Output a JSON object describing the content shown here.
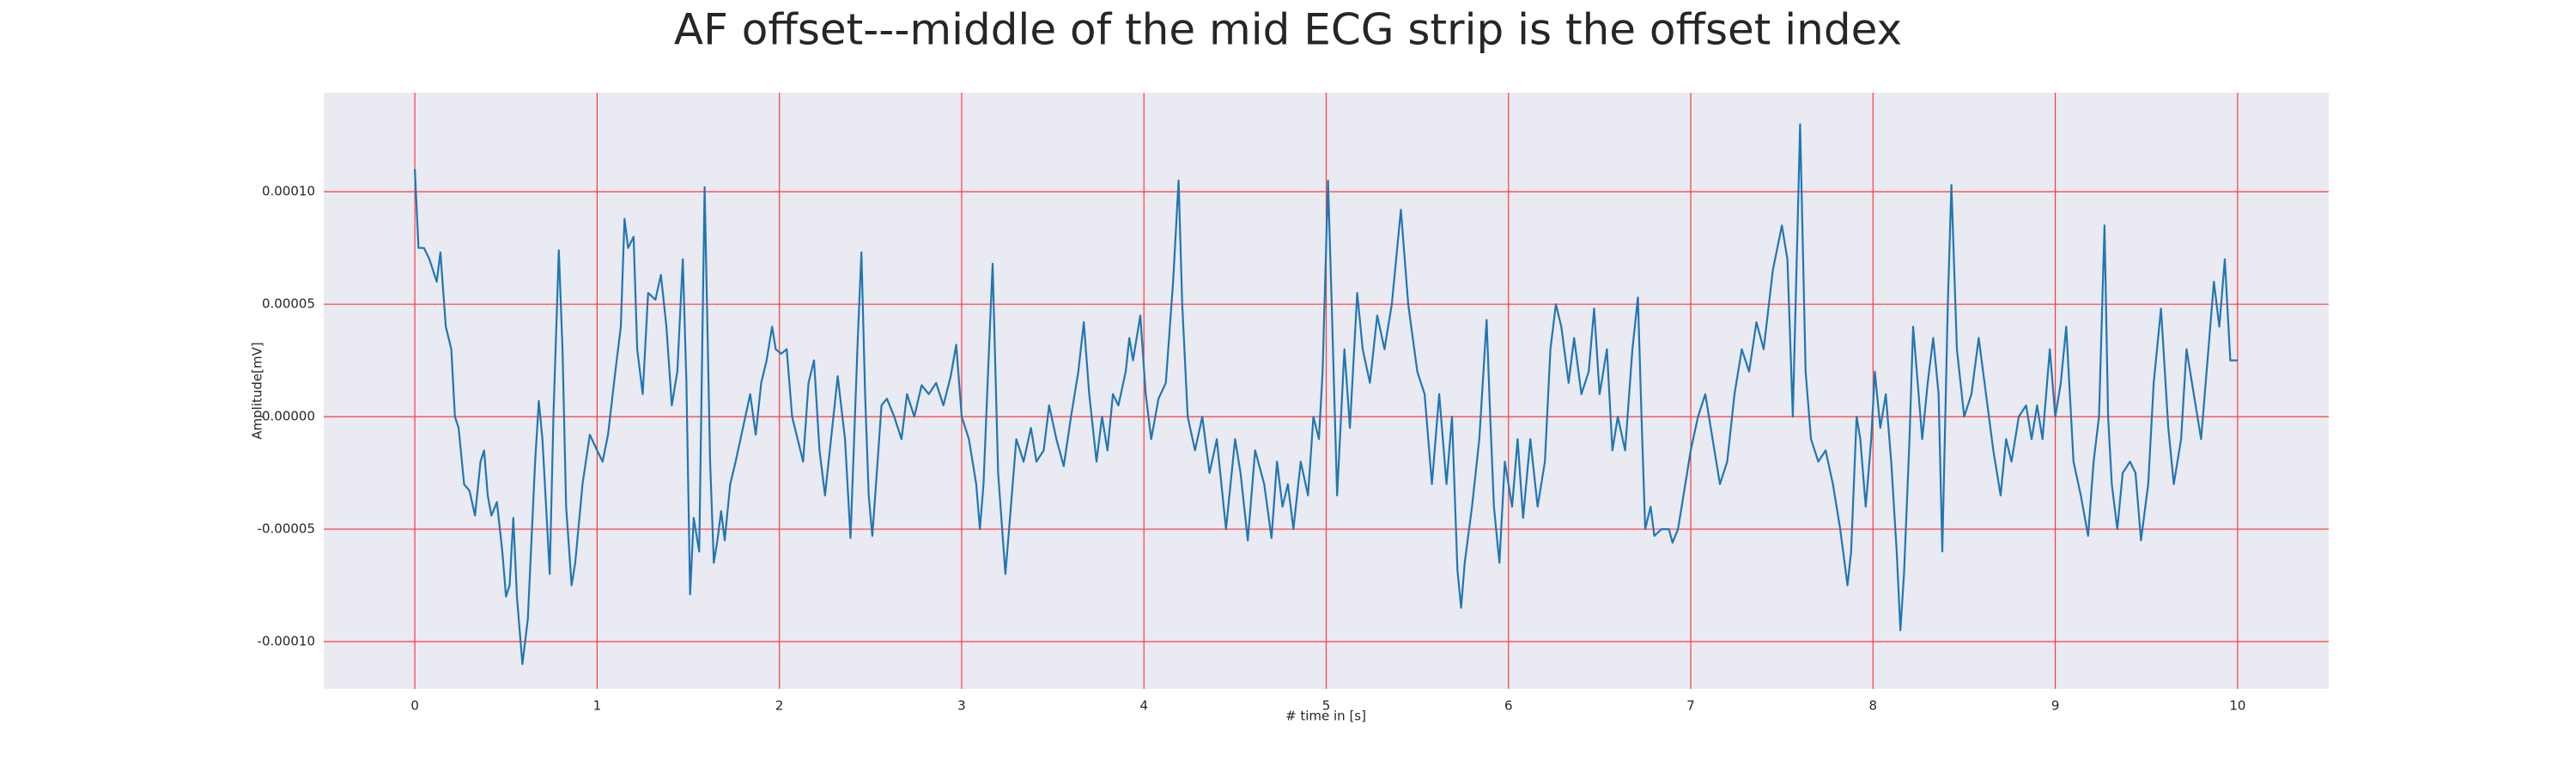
{
  "chart_data": {
    "type": "line",
    "title": "AF offset---middle of the mid ECG strip is the offset index",
    "xlabel": "# time in [s]",
    "ylabel": "Amplitude[mV]",
    "color": "#1f77b4",
    "background": "#eaeaf2",
    "grid": true,
    "grid_color": "#ff3b3b",
    "xlim": [
      -0.5,
      10.5
    ],
    "ylim": [
      -0.000121,
      0.000144
    ],
    "xticks": [
      0,
      1,
      2,
      3,
      4,
      5,
      6,
      7,
      8,
      9,
      10
    ],
    "yticks": [
      {
        "value": 0.0001,
        "label": "0.00010"
      },
      {
        "value": 5e-05,
        "label": "0.00005"
      },
      {
        "value": 0,
        "label": "0.00000"
      },
      {
        "value": -5e-05,
        "label": "-0.00005"
      },
      {
        "value": -0.0001,
        "label": "-0.00010"
      }
    ],
    "x": [
      0.0,
      0.02,
      0.05,
      0.08,
      0.12,
      0.14,
      0.17,
      0.2,
      0.22,
      0.24,
      0.27,
      0.3,
      0.33,
      0.36,
      0.38,
      0.4,
      0.42,
      0.45,
      0.48,
      0.5,
      0.52,
      0.54,
      0.56,
      0.59,
      0.62,
      0.66,
      0.68,
      0.7,
      0.72,
      0.74,
      0.76,
      0.79,
      0.81,
      0.83,
      0.86,
      0.88,
      0.92,
      0.96,
      1.0,
      1.03,
      1.06,
      1.1,
      1.13,
      1.15,
      1.17,
      1.2,
      1.22,
      1.25,
      1.28,
      1.32,
      1.35,
      1.38,
      1.41,
      1.44,
      1.47,
      1.49,
      1.51,
      1.53,
      1.56,
      1.59,
      1.62,
      1.64,
      1.66,
      1.68,
      1.7,
      1.73,
      1.76,
      1.8,
      1.84,
      1.87,
      1.9,
      1.93,
      1.96,
      1.98,
      2.01,
      2.04,
      2.07,
      2.1,
      2.13,
      2.16,
      2.19,
      2.22,
      2.25,
      2.29,
      2.32,
      2.36,
      2.39,
      2.41,
      2.43,
      2.45,
      2.47,
      2.49,
      2.51,
      2.53,
      2.56,
      2.59,
      2.63,
      2.67,
      2.7,
      2.74,
      2.78,
      2.82,
      2.86,
      2.9,
      2.94,
      2.97,
      3.0,
      3.04,
      3.08,
      3.1,
      3.12,
      3.15,
      3.17,
      3.2,
      3.24,
      3.27,
      3.3,
      3.34,
      3.38,
      3.41,
      3.45,
      3.48,
      3.52,
      3.56,
      3.6,
      3.64,
      3.67,
      3.7,
      3.74,
      3.77,
      3.8,
      3.83,
      3.86,
      3.9,
      3.92,
      3.94,
      3.98,
      4.01,
      4.04,
      4.08,
      4.12,
      4.16,
      4.19,
      4.21,
      4.24,
      4.28,
      4.32,
      4.36,
      4.4,
      4.45,
      4.5,
      4.53,
      4.57,
      4.61,
      4.66,
      4.7,
      4.73,
      4.76,
      4.79,
      4.82,
      4.86,
      4.9,
      4.93,
      4.96,
      4.98,
      5.01,
      5.03,
      5.06,
      5.1,
      5.13,
      5.17,
      5.2,
      5.24,
      5.28,
      5.32,
      5.36,
      5.41,
      5.45,
      5.5,
      5.54,
      5.58,
      5.62,
      5.66,
      5.69,
      5.72,
      5.74,
      5.76,
      5.8,
      5.84,
      5.88,
      5.9,
      5.92,
      5.95,
      5.98,
      6.02,
      6.05,
      6.08,
      6.12,
      6.16,
      6.2,
      6.23,
      6.26,
      6.29,
      6.33,
      6.36,
      6.4,
      6.44,
      6.47,
      6.5,
      6.54,
      6.57,
      6.6,
      6.64,
      6.68,
      6.71,
      6.73,
      6.75,
      6.78,
      6.8,
      6.84,
      6.88,
      6.9,
      6.93,
      6.97,
      7.0,
      7.04,
      7.08,
      7.12,
      7.16,
      7.2,
      7.24,
      7.28,
      7.32,
      7.36,
      7.4,
      7.45,
      7.5,
      7.53,
      7.56,
      7.6,
      7.63,
      7.66,
      7.7,
      7.74,
      7.78,
      7.82,
      7.86,
      7.88,
      7.91,
      7.93,
      7.96,
      7.99,
      8.01,
      8.04,
      8.07,
      8.1,
      8.13,
      8.15,
      8.17,
      8.2,
      8.22,
      8.24,
      8.27,
      8.3,
      8.33,
      8.36,
      8.38,
      8.41,
      8.43,
      8.46,
      8.5,
      8.54,
      8.58,
      8.62,
      8.66,
      8.7,
      8.73,
      8.76,
      8.8,
      8.84,
      8.87,
      8.9,
      8.93,
      8.97,
      9.0,
      9.03,
      9.06,
      9.1,
      9.14,
      9.18,
      9.21,
      9.24,
      9.27,
      9.29,
      9.31,
      9.34,
      9.37,
      9.41,
      9.44,
      9.47,
      9.51,
      9.54,
      9.58,
      9.62,
      9.65,
      9.69,
      9.72,
      9.76,
      9.8,
      9.83,
      9.87,
      9.9,
      9.93,
      9.96,
      10.0
    ],
    "values": [
      0.00011,
      7.5e-05,
      7.5e-05,
      7e-05,
      6e-05,
      7.3e-05,
      4e-05,
      3e-05,
      0,
      -5e-06,
      -3e-05,
      -3.3e-05,
      -4.4e-05,
      -2e-05,
      -1.5e-05,
      -3.5e-05,
      -4.4e-05,
      -3.8e-05,
      -6e-05,
      -8e-05,
      -7.5e-05,
      -4.5e-05,
      -8e-05,
      -0.00011,
      -9e-05,
      -2e-05,
      7e-06,
      -1e-05,
      -4e-05,
      -7e-05,
      0,
      7.4e-05,
      3e-05,
      -4e-05,
      -7.5e-05,
      -6.5e-05,
      -3e-05,
      -8e-06,
      -1.5e-05,
      -2e-05,
      -8e-06,
      2e-05,
      4e-05,
      8.8e-05,
      7.5e-05,
      8e-05,
      3e-05,
      1e-05,
      5.5e-05,
      5.2e-05,
      6.3e-05,
      4e-05,
      5e-06,
      2e-05,
      7e-05,
      1.5e-05,
      -7.9e-05,
      -4.5e-05,
      -6e-05,
      0.000102,
      -2e-05,
      -6.5e-05,
      -5.5e-05,
      -4.2e-05,
      -5.5e-05,
      -3e-05,
      -2e-05,
      -5e-06,
      1e-05,
      -8e-06,
      1.5e-05,
      2.5e-05,
      4e-05,
      3e-05,
      2.8e-05,
      3e-05,
      0,
      -1e-05,
      -2e-05,
      1.5e-05,
      2.5e-05,
      -1.5e-05,
      -3.5e-05,
      -5e-06,
      1.8e-05,
      -1e-05,
      -5.4e-05,
      -1e-05,
      3.5e-05,
      7.3e-05,
      1e-05,
      -3.5e-05,
      -5.3e-05,
      -3e-05,
      5e-06,
      8e-06,
      0,
      -1e-05,
      1e-05,
      0,
      1.4e-05,
      1e-05,
      1.5e-05,
      5e-06,
      1.8e-05,
      3.2e-05,
      0,
      -1e-05,
      -3e-05,
      -5e-05,
      -3e-05,
      3e-05,
      6.8e-05,
      -2.5e-05,
      -7e-05,
      -4e-05,
      -1e-05,
      -2e-05,
      -5e-06,
      -2e-05,
      -1.5e-05,
      5e-06,
      -1e-05,
      -2.2e-05,
      0,
      2e-05,
      4.2e-05,
      1e-05,
      -2e-05,
      0,
      -1.5e-05,
      1e-05,
      5e-06,
      2e-05,
      3.5e-05,
      2.5e-05,
      4.5e-05,
      1e-05,
      -1e-05,
      8e-06,
      1.5e-05,
      6e-05,
      0.000105,
      5e-05,
      0,
      -1.5e-05,
      0,
      -2.5e-05,
      -1e-05,
      -5e-05,
      -1e-05,
      -2.5e-05,
      -5.5e-05,
      -1.5e-05,
      -3e-05,
      -5.4e-05,
      -2e-05,
      -4e-05,
      -3e-05,
      -5e-05,
      -2e-05,
      -3.5e-05,
      0,
      -1e-05,
      2e-05,
      0.000105,
      5e-05,
      -3.5e-05,
      3e-05,
      -5e-06,
      5.5e-05,
      3e-05,
      1.5e-05,
      4.5e-05,
      3e-05,
      5e-05,
      9.2e-05,
      5e-05,
      2e-05,
      1e-05,
      -3e-05,
      1e-05,
      -3e-05,
      0,
      -6.8e-05,
      -8.5e-05,
      -6.5e-05,
      -4e-05,
      -1e-05,
      4.3e-05,
      0,
      -4e-05,
      -6.5e-05,
      -2e-05,
      -4e-05,
      -1e-05,
      -4.5e-05,
      -1e-05,
      -4e-05,
      -2e-05,
      3e-05,
      5e-05,
      4e-05,
      1.5e-05,
      3.5e-05,
      1e-05,
      2e-05,
      4.8e-05,
      1e-05,
      3e-05,
      -1.5e-05,
      0,
      -1.5e-05,
      3e-05,
      5.3e-05,
      0,
      -5e-05,
      -4e-05,
      -5.3e-05,
      -5e-05,
      -5e-05,
      -5.6e-05,
      -5e-05,
      -3e-05,
      -1.5e-05,
      0,
      1e-05,
      -1e-05,
      -3e-05,
      -2e-05,
      1e-05,
      3e-05,
      2e-05,
      4.2e-05,
      3e-05,
      6.5e-05,
      8.5e-05,
      7e-05,
      0,
      0.00013,
      2e-05,
      -1e-05,
      -2e-05,
      -1.5e-05,
      -3e-05,
      -5e-05,
      -7.5e-05,
      -6e-05,
      0,
      -1e-05,
      -4e-05,
      -1e-05,
      2e-05,
      -5e-06,
      1e-05,
      -2e-05,
      -6e-05,
      -9.5e-05,
      -7e-05,
      -1e-05,
      4e-05,
      2e-05,
      -1e-05,
      1.5e-05,
      3.5e-05,
      1e-05,
      -6e-05,
      5e-05,
      0.000103,
      3e-05,
      0,
      1e-05,
      3.5e-05,
      1e-05,
      -1.5e-05,
      -3.5e-05,
      -1e-05,
      -2e-05,
      0,
      5e-06,
      -1e-05,
      5e-06,
      -1e-05,
      3e-05,
      0,
      1.5e-05,
      4e-05,
      -2e-05,
      -3.5e-05,
      -5.3e-05,
      -2e-05,
      0,
      8.5e-05,
      0,
      -3e-05,
      -5e-05,
      -2.5e-05,
      -2e-05,
      -2.5e-05,
      -5.5e-05,
      -3e-05,
      1.5e-05,
      4.8e-05,
      -5e-06,
      -3e-05,
      -1e-05,
      3e-05,
      1e-05,
      -1e-05,
      2e-05,
      6e-05,
      4e-05,
      7e-05,
      2.5e-05,
      2.5e-05
    ]
  }
}
